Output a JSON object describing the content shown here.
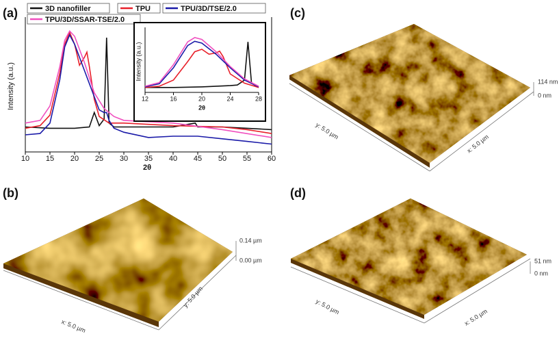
{
  "chart_data": [
    {
      "type": "line",
      "xlabel": "2θ",
      "ylabel": "Intensity (a.u.)",
      "xlim": [
        10,
        60
      ],
      "xticks": [
        10,
        15,
        20,
        25,
        30,
        35,
        40,
        45,
        50,
        55,
        60
      ],
      "ylim": [
        0,
        100
      ],
      "series": [
        {
          "name": "3D nanofiller",
          "color": "#111111",
          "x": [
            10,
            15,
            20,
            23,
            24,
            25,
            26,
            26.5,
            27,
            28,
            30,
            35,
            40,
            44.5,
            45,
            50,
            55,
            60
          ],
          "values": [
            19,
            18,
            18,
            19,
            30,
            20,
            25,
            87,
            22,
            19,
            19,
            19,
            19,
            22,
            19,
            19,
            18,
            17
          ]
        },
        {
          "name": "TPU",
          "color": "#e8202a",
          "x": [
            10,
            13,
            15,
            17,
            18,
            19,
            20,
            21,
            22,
            22.5,
            23,
            24,
            25,
            27,
            30,
            40,
            50,
            55,
            60
          ],
          "values": [
            18,
            20,
            28,
            60,
            82,
            91,
            82,
            66,
            72,
            76,
            65,
            40,
            27,
            22,
            22,
            20,
            19,
            17,
            14
          ]
        },
        {
          "name": "TPU/3D/TSE/2.0",
          "color": "#1a1aa8",
          "x": [
            10,
            13,
            15,
            17,
            18,
            19,
            20,
            22,
            24,
            25,
            26,
            26.5,
            27,
            28,
            30,
            35,
            40,
            45,
            50,
            55,
            60
          ],
          "values": [
            13,
            14,
            22,
            55,
            80,
            89,
            82,
            62,
            42,
            32,
            30,
            30,
            24,
            18,
            15,
            11,
            12,
            12,
            10,
            8,
            6
          ]
        },
        {
          "name": "TPU/3D/SSAR-TSE/2.0",
          "color": "#f04fbf",
          "x": [
            10,
            13,
            15,
            17,
            18,
            19,
            20,
            22,
            24,
            26,
            28,
            30,
            40,
            50,
            60
          ],
          "values": [
            22,
            24,
            35,
            65,
            85,
            92,
            88,
            68,
            45,
            33,
            27,
            24,
            22,
            17,
            11
          ]
        }
      ]
    },
    {
      "type": "line",
      "xlabel": "2θ",
      "ylabel": "Intensity (a.u.)",
      "xlim": [
        12,
        28
      ],
      "xticks": [
        12,
        16,
        20,
        24,
        28
      ],
      "ylim": [
        0,
        100
      ],
      "series": [
        {
          "color": "#111111",
          "x": [
            12,
            16,
            20,
            24,
            25,
            26,
            26.5,
            27,
            28
          ],
          "values": [
            8,
            8,
            9,
            11,
            12,
            20,
            82,
            15,
            8
          ]
        },
        {
          "color": "#e8202a",
          "x": [
            12,
            14,
            16,
            18,
            19,
            20,
            21,
            22,
            22.5,
            23,
            24,
            26,
            28
          ],
          "values": [
            8,
            10,
            20,
            50,
            66,
            70,
            62,
            64,
            67,
            58,
            30,
            15,
            8
          ]
        },
        {
          "color": "#1a1aa8",
          "x": [
            12,
            14,
            16,
            18,
            19,
            20,
            22,
            24,
            26,
            28
          ],
          "values": [
            9,
            14,
            40,
            76,
            83,
            80,
            62,
            40,
            20,
            9
          ]
        },
        {
          "color": "#f04fbf",
          "x": [
            12,
            14,
            16,
            18,
            19,
            20,
            22,
            24,
            26,
            28
          ],
          "values": [
            10,
            16,
            45,
            82,
            89,
            86,
            66,
            42,
            22,
            10
          ]
        }
      ]
    }
  ],
  "panels": {
    "a": {
      "label": "(a)"
    },
    "b": {
      "label": "(b)",
      "z_max": "0.14 µm",
      "z_min": "0.00 µm",
      "x_axis": "x: 5.0 µm",
      "y_axis": "y: 5.0 µm"
    },
    "c": {
      "label": "(c)",
      "z_max": "114 nm",
      "z_min": "0 nm",
      "x_axis": "x: 5.0 µm",
      "y_axis": "y: 5.0 µm"
    },
    "d": {
      "label": "(d)",
      "z_max": "51 nm",
      "z_min": "0 nm",
      "x_axis": "x: 5.0 µm",
      "y_axis": "y: 5.0 µm"
    }
  }
}
